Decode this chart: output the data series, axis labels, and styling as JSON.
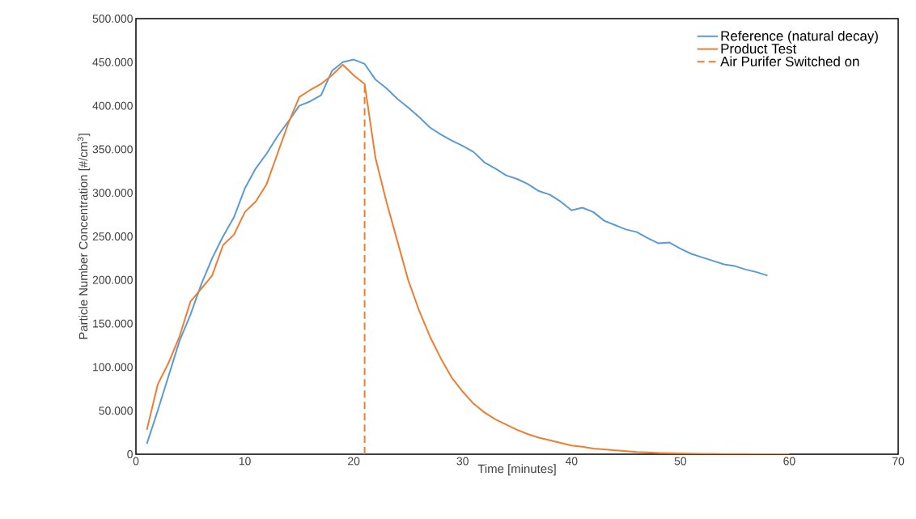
{
  "chart_data": {
    "type": "line",
    "xlabel": "Time [minutes]",
    "ylabel": "Particle Number Concentration [#/cm$^{3}$]",
    "xlim": [
      0,
      70
    ],
    "xticks": [
      0,
      10,
      20,
      30,
      40,
      50,
      60,
      70
    ],
    "ylim": [
      0,
      500000
    ],
    "yticks": [
      {
        "value": 0,
        "label": "0"
      },
      {
        "value": 50000,
        "label": "50.000"
      },
      {
        "value": 100000,
        "label": "100.000"
      },
      {
        "value": 150000,
        "label": "150.000"
      },
      {
        "value": 200000,
        "label": "200.000"
      },
      {
        "value": 250000,
        "label": "250.000"
      },
      {
        "value": 300000,
        "label": "300.000"
      },
      {
        "value": 350000,
        "label": "350.000"
      },
      {
        "value": 400000,
        "label": "400.000"
      },
      {
        "value": 450000,
        "label": "450.000"
      },
      {
        "value": 500000,
        "label": "500.000"
      }
    ],
    "grid": false,
    "legend": "top right",
    "marker": "none",
    "series": [
      {
        "name": "Reference (natural decay)",
        "color": "#5b9bd5",
        "line_style": "solid",
        "x": [
          1,
          2,
          3,
          4,
          5,
          6,
          7,
          8,
          9,
          10,
          11,
          12,
          13,
          14,
          15,
          16,
          17,
          18,
          19,
          20,
          21,
          22,
          23,
          24,
          25,
          26,
          27,
          28,
          29,
          30,
          31,
          32,
          33,
          34,
          35,
          36,
          37,
          38,
          39,
          40,
          41,
          42,
          43,
          44,
          45,
          46,
          47,
          48,
          49,
          50,
          51,
          52,
          53,
          54,
          55,
          56,
          57,
          58
        ],
        "values": [
          12000,
          50000,
          90000,
          130000,
          160000,
          195000,
          225000,
          250000,
          272000,
          305000,
          328000,
          345000,
          365000,
          382000,
          400000,
          405000,
          412000,
          440000,
          450000,
          453000,
          448000,
          430000,
          420000,
          408000,
          398000,
          387000,
          375000,
          367000,
          360000,
          354000,
          347000,
          335000,
          328000,
          320000,
          316000,
          310000,
          302000,
          298000,
          290000,
          280000,
          283000,
          278000,
          268000,
          263000,
          258000,
          255000,
          248000,
          242000,
          243000,
          236000,
          230000,
          226000,
          222000,
          218000,
          216000,
          212000,
          209000,
          205000
        ]
      },
      {
        "name": "Product Test",
        "color": "#ed7d31",
        "line_style": "solid",
        "x": [
          1,
          2,
          3,
          4,
          5,
          6,
          7,
          8,
          9,
          10,
          11,
          12,
          13,
          14,
          15,
          16,
          17,
          18,
          19,
          20,
          21,
          22,
          23,
          24,
          25,
          26,
          27,
          28,
          29,
          30,
          31,
          32,
          33,
          34,
          35,
          36,
          37,
          38,
          39,
          40,
          41,
          42,
          43,
          44,
          45,
          46,
          47,
          48,
          49,
          50,
          51,
          52,
          53,
          54,
          55,
          56,
          57,
          58,
          59,
          60
        ],
        "values": [
          28000,
          80000,
          105000,
          135000,
          175000,
          190000,
          205000,
          240000,
          252000,
          278000,
          290000,
          310000,
          345000,
          380000,
          410000,
          418000,
          425000,
          435000,
          447000,
          435000,
          425000,
          340000,
          290000,
          245000,
          200000,
          165000,
          135000,
          110000,
          88000,
          72000,
          58000,
          48000,
          40000,
          34000,
          28000,
          23000,
          19000,
          16000,
          13000,
          10000,
          8500,
          6500,
          5500,
          4500,
          3500,
          2500,
          2000,
          1500,
          1200,
          1000,
          800,
          500,
          400,
          300,
          200,
          200,
          100,
          100,
          0,
          0
        ]
      },
      {
        "name": "Air Purifer Switched on",
        "color": "#ed7d31",
        "line_style": "dashed",
        "x": [
          21,
          21
        ],
        "values": [
          0,
          425000
        ]
      }
    ]
  }
}
